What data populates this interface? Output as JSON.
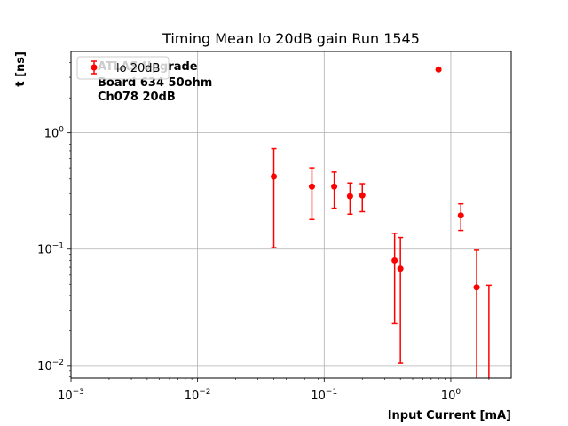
{
  "chart_data": {
    "type": "scatter",
    "title": "Timing Mean lo 20dB gain Run 1545",
    "xlabel": "Input Current [mA]",
    "ylabel": "t [ns]",
    "xscale": "log",
    "yscale": "log",
    "xlim": [
      0.001,
      3.0
    ],
    "ylim": [
      0.0078,
      5.0
    ],
    "grid": true,
    "legend_position": "top-left",
    "x_ticks": [
      {
        "value": 0.001,
        "base": "10",
        "exp": "−3"
      },
      {
        "value": 0.01,
        "base": "10",
        "exp": "−2"
      },
      {
        "value": 0.1,
        "base": "10",
        "exp": "−1"
      },
      {
        "value": 1,
        "base": "10",
        "exp": "0"
      }
    ],
    "y_ticks": [
      {
        "value": 0.01,
        "base": "10",
        "exp": "−2"
      },
      {
        "value": 0.1,
        "base": "10",
        "exp": "−1"
      },
      {
        "value": 1,
        "base": "10",
        "exp": "0"
      }
    ],
    "annotation_lines": [
      "ATLAS Upgrade",
      "Board 634 50ohm",
      "Ch078 20dB"
    ],
    "series": [
      {
        "name": "lo 20dB",
        "color": "#ff0000",
        "points": [
          {
            "x": 0.04,
            "y": 0.42,
            "ylow": 0.103,
            "yhigh": 0.73
          },
          {
            "x": 0.08,
            "y": 0.345,
            "ylow": 0.18,
            "yhigh": 0.5
          },
          {
            "x": 0.12,
            "y": 0.345,
            "ylow": 0.225,
            "yhigh": 0.46
          },
          {
            "x": 0.16,
            "y": 0.285,
            "ylow": 0.2,
            "yhigh": 0.37
          },
          {
            "x": 0.2,
            "y": 0.29,
            "ylow": 0.21,
            "yhigh": 0.365
          },
          {
            "x": 0.36,
            "y": 0.08,
            "ylow": 0.023,
            "yhigh": 0.137
          },
          {
            "x": 0.4,
            "y": 0.068,
            "ylow": 0.0105,
            "yhigh": 0.126
          },
          {
            "x": 0.8,
            "y": 3.5,
            "ylow": null,
            "yhigh": null
          },
          {
            "x": 1.2,
            "y": 0.195,
            "ylow": 0.145,
            "yhigh": 0.245
          },
          {
            "x": 1.6,
            "y": 0.047,
            "ylow": 0.0078,
            "yhigh": 0.098
          },
          {
            "x": 2.0,
            "y": null,
            "ylow": 0.0078,
            "yhigh": 0.049
          }
        ]
      }
    ]
  }
}
